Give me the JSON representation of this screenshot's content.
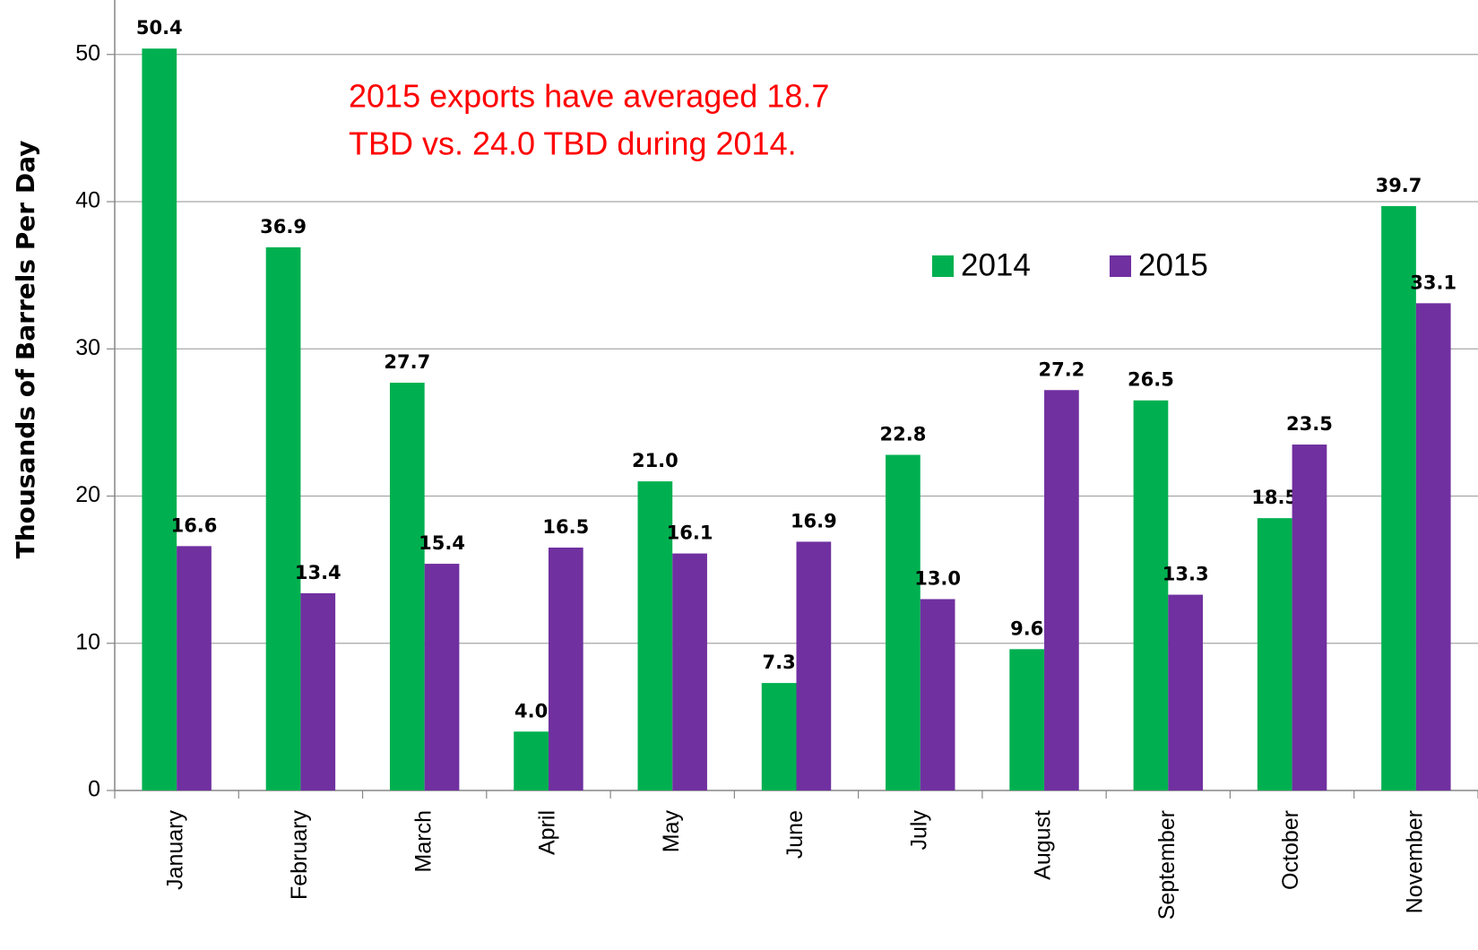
{
  "chart_data": {
    "type": "bar",
    "y_label": "Thousands of Barrels Per Day",
    "annotation": [
      "2015 exports have averaged 18.7",
      "TBD vs. 24.0 TBD during 2014."
    ],
    "categories": [
      "January",
      "February",
      "March",
      "April",
      "May",
      "June",
      "July",
      "August",
      "September",
      "October",
      "November"
    ],
    "series": [
      {
        "name": "2014",
        "color": "#00b050",
        "values": [
          50.4,
          36.9,
          27.7,
          4.0,
          21.0,
          7.3,
          22.8,
          9.6,
          26.5,
          18.5,
          39.7
        ],
        "value_labels": [
          "50.4",
          "36.9",
          "27.7",
          "4.0",
          "21.0",
          "7.3",
          "22.8",
          "9.6",
          "26.5",
          "18.5",
          "39.7"
        ]
      },
      {
        "name": "2015",
        "color": "#7030a0",
        "values": [
          16.6,
          13.4,
          15.4,
          16.5,
          16.1,
          16.9,
          13.0,
          27.2,
          13.3,
          23.5,
          33.1
        ],
        "value_labels": [
          "16.6",
          "13.4",
          "15.4",
          "16.5",
          "16.1",
          "16.9",
          "13.0",
          "27.2",
          "13.3",
          "23.5",
          "33.1"
        ]
      }
    ],
    "ylim": [
      0,
      53.7
    ],
    "yticks": [
      0,
      10,
      20,
      30,
      40,
      50
    ],
    "grid": true,
    "legend": "upper right"
  }
}
